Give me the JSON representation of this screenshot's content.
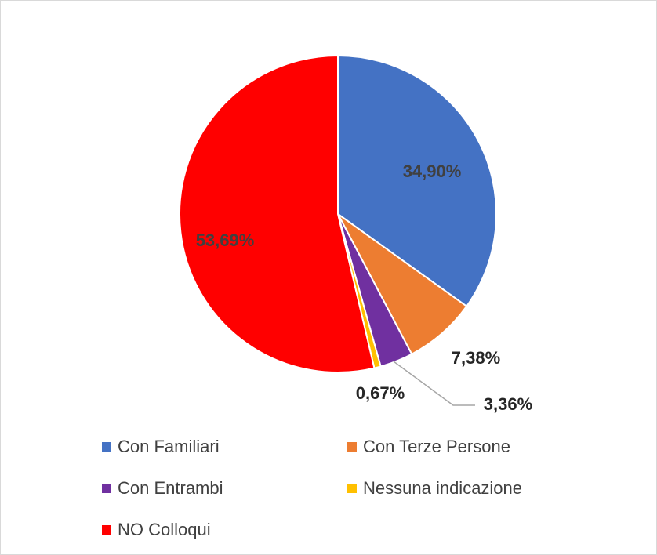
{
  "chart_data": {
    "type": "pie",
    "categories": [
      "Con Familiari",
      "Con Terze Persone",
      "Con Entrambi",
      "Nessuna indicazione",
      "NO Colloqui"
    ],
    "values": [
      34.9,
      7.38,
      3.36,
      0.67,
      53.69
    ],
    "value_labels": [
      "34,90%",
      "7,38%",
      "3,36%",
      "0,67%",
      "53,69%"
    ],
    "colors": [
      "#4472c4",
      "#ed7d31",
      "#7030a0",
      "#ffc000",
      "#ff0000"
    ]
  }
}
